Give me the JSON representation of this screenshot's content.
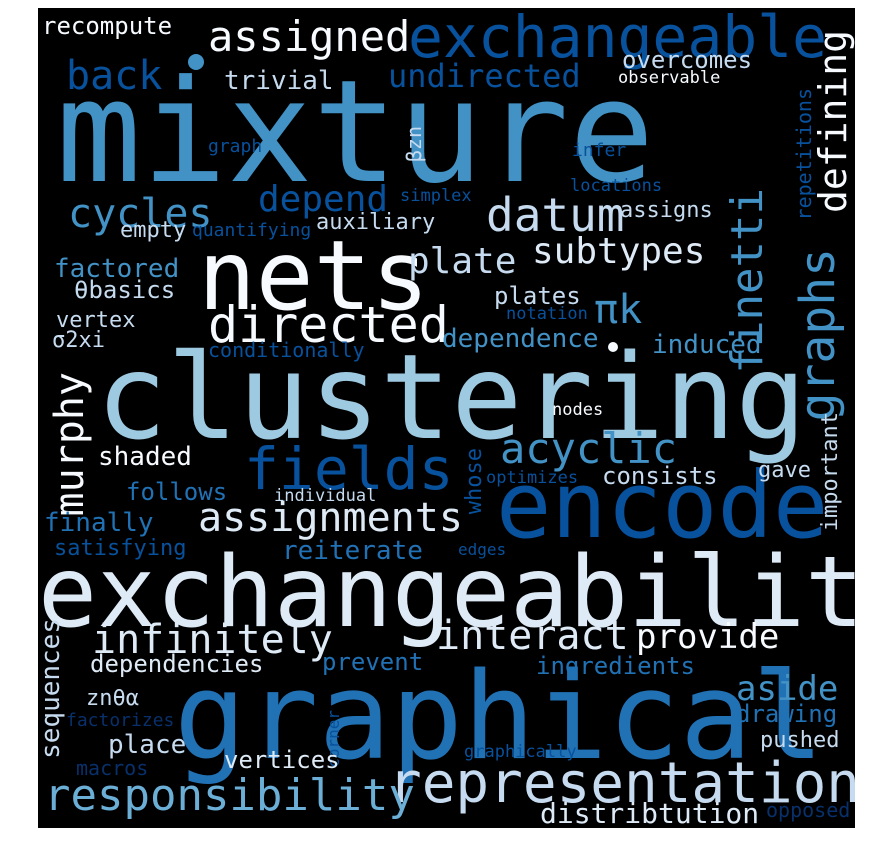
{
  "words": {
    "mixture": "mixture",
    "exchangeability": "exchangeability",
    "graphical": "graphical",
    "clustering": "clustering",
    "encode": "encode",
    "nets": "nets",
    "representation": "representation",
    "exchangeable": "exchangeable",
    "fields": "fields",
    "directed": "directed",
    "assignments": "assignments",
    "responsibility": "responsibility",
    "infinitely": "infinitely",
    "interact": "interact",
    "acyclic": "acyclic",
    "graphs": "graphs",
    "finetti": "finetti",
    "datum": "datum",
    "subtypes": "subtypes",
    "plate": "plate",
    "assigned": "assigned",
    "undirected": "undirected",
    "cycles": "cycles",
    "depend": "depend",
    "defining": "defining",
    "murphy": "murphy",
    "provide": "provide",
    "pik": "πk",
    "back": "back",
    "aside": "aside",
    "dependencies": "dependencies",
    "distribtution": "distribtution",
    "recompute": "recompute",
    "trivial": "trivial",
    "overcomes": "overcomes",
    "observable": "observable",
    "graph": "graph",
    "bzn": "βzn",
    "infer": "infer",
    "repetitions": "repetitions",
    "simplex": "simplex",
    "locations": "locations",
    "auxiliary": "auxiliary",
    "assigns": "assigns",
    "empty": "empty",
    "quantifying": "quantifying",
    "factored": "factored",
    "thetabasics": "θbasics",
    "plates": "plates",
    "vertex": "vertex",
    "notation": "notation",
    "sigma2xi": "σ2xi",
    "dependence": "dependence",
    "induced": "induced",
    "conditionally": "conditionally",
    "nodes": "nodes",
    "shaded": "shaded",
    "important": "important",
    "whose": "whose",
    "consists": "consists",
    "gave": "gave",
    "optimizes": "optimizes",
    "follows": "follows",
    "individual": "individual",
    "finally": "finally",
    "reiterate": "reiterate",
    "edges": "edges",
    "satisfying": "satisfying",
    "sequences": "sequences",
    "prevent": "prevent",
    "ingredients": "ingredients",
    "zntheta": "znθα",
    "factorizes": "factorizes",
    "drawing": "drawing",
    "place": "place",
    "corner": "corner",
    "pushed": "pushed",
    "macros": "macros",
    "graphically": "graphically",
    "vertices": "vertices",
    "opposed": "opposed"
  }
}
